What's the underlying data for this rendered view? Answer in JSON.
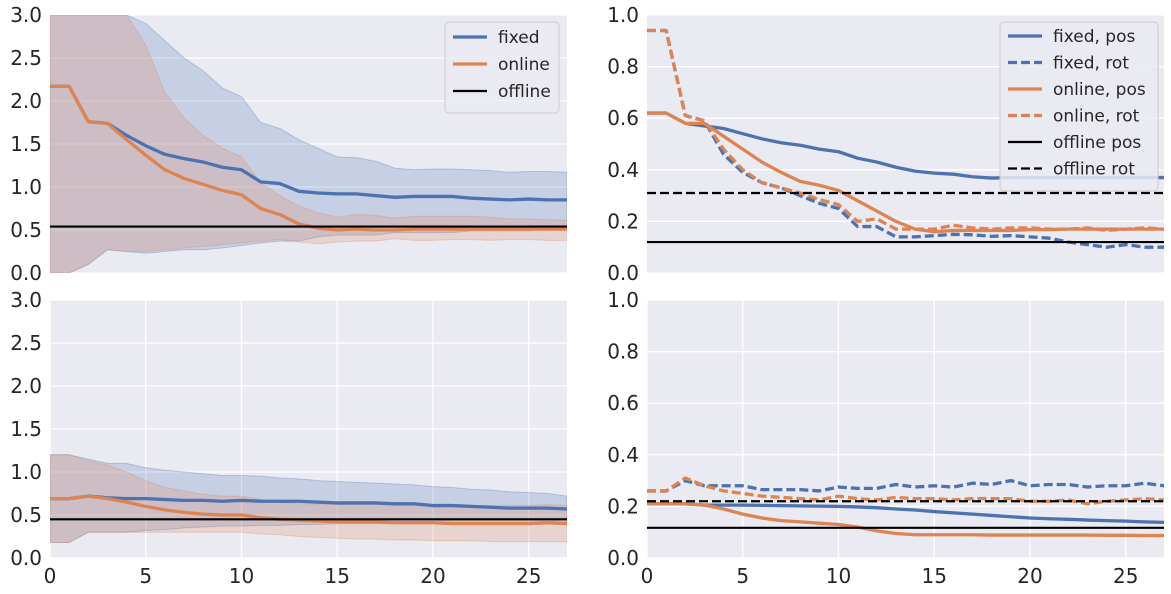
{
  "chart_data": [
    {
      "type": "line",
      "id": "top-left",
      "x": [
        0,
        1,
        2,
        3,
        4,
        5,
        6,
        7,
        8,
        9,
        10,
        11,
        12,
        13,
        14,
        15,
        16,
        17,
        18,
        19,
        20,
        21,
        22,
        23,
        24,
        25,
        26,
        27
      ],
      "xlim": [
        0,
        27
      ],
      "ylim": [
        0,
        3.0
      ],
      "yticks": [
        "0.0",
        "0.5",
        "1.0",
        "1.5",
        "2.0",
        "2.5",
        "3.0"
      ],
      "xticks": [],
      "grid": true,
      "legend": "top-right",
      "series": [
        {
          "name": "fixed",
          "color": "#4c72b0",
          "style": "solid",
          "values": [
            2.17,
            2.17,
            1.76,
            1.74,
            1.6,
            1.48,
            1.38,
            1.33,
            1.29,
            1.23,
            1.2,
            1.06,
            1.04,
            0.95,
            0.93,
            0.92,
            0.92,
            0.9,
            0.88,
            0.89,
            0.89,
            0.89,
            0.87,
            0.86,
            0.85,
            0.86,
            0.85,
            0.85
          ],
          "band_low": [
            0.0,
            0.0,
            0.1,
            0.27,
            0.25,
            0.23,
            0.25,
            0.27,
            0.27,
            0.29,
            0.32,
            0.35,
            0.37,
            0.37,
            0.42,
            0.44,
            0.44,
            0.44,
            0.47,
            0.47,
            0.47,
            0.47,
            0.49,
            0.49,
            0.49,
            0.49,
            0.51,
            0.52
          ],
          "band_high": [
            3.0,
            3.0,
            3.0,
            3.0,
            3.0,
            2.9,
            2.7,
            2.5,
            2.35,
            2.15,
            2.05,
            1.75,
            1.68,
            1.55,
            1.45,
            1.35,
            1.34,
            1.3,
            1.22,
            1.2,
            1.21,
            1.21,
            1.2,
            1.19,
            1.17,
            1.18,
            1.18,
            1.17
          ]
        },
        {
          "name": "online",
          "color": "#dd8452",
          "style": "solid",
          "values": [
            2.17,
            2.17,
            1.76,
            1.74,
            1.55,
            1.37,
            1.2,
            1.1,
            1.03,
            0.96,
            0.91,
            0.75,
            0.68,
            0.57,
            0.52,
            0.5,
            0.51,
            0.5,
            0.5,
            0.51,
            0.51,
            0.51,
            0.51,
            0.51,
            0.51,
            0.51,
            0.51,
            0.51
          ],
          "band_low": [
            0.0,
            0.0,
            0.1,
            0.27,
            0.25,
            0.25,
            0.27,
            0.29,
            0.31,
            0.33,
            0.35,
            0.37,
            0.39,
            0.36,
            0.34,
            0.36,
            0.37,
            0.37,
            0.4,
            0.38,
            0.38,
            0.39,
            0.39,
            0.38,
            0.39,
            0.39,
            0.38,
            0.38
          ],
          "band_high": [
            3.0,
            3.0,
            3.0,
            3.0,
            3.0,
            2.65,
            2.1,
            1.8,
            1.6,
            1.45,
            1.35,
            1.05,
            0.9,
            0.78,
            0.7,
            0.65,
            0.68,
            0.67,
            0.64,
            0.66,
            0.66,
            0.66,
            0.66,
            0.65,
            0.63,
            0.63,
            0.62,
            0.61
          ]
        },
        {
          "name": "offline",
          "color": "#000000",
          "style": "solid",
          "constant": 0.54
        }
      ]
    },
    {
      "type": "line",
      "id": "top-right",
      "x": [
        0,
        1,
        2,
        3,
        4,
        5,
        6,
        7,
        8,
        9,
        10,
        11,
        12,
        13,
        14,
        15,
        16,
        17,
        18,
        19,
        20,
        21,
        22,
        23,
        24,
        25,
        26,
        27
      ],
      "xlim": [
        0,
        27
      ],
      "ylim": [
        0,
        1.0
      ],
      "yticks": [
        "0.0",
        "0.2",
        "0.4",
        "0.6",
        "0.8",
        "1.0"
      ],
      "xticks": [],
      "grid": true,
      "legend": "top-right",
      "series": [
        {
          "name": "fixed, pos",
          "color": "#4c72b0",
          "style": "solid",
          "values": [
            0.62,
            0.62,
            0.58,
            0.57,
            0.56,
            0.54,
            0.52,
            0.505,
            0.495,
            0.48,
            0.47,
            0.445,
            0.43,
            0.41,
            0.395,
            0.387,
            0.383,
            0.373,
            0.368,
            0.37,
            0.37,
            0.37,
            0.37,
            0.37,
            0.37,
            0.37,
            0.37,
            0.37
          ]
        },
        {
          "name": "fixed, rot",
          "color": "#4c72b0",
          "style": "dashed",
          "values": [
            0.94,
            0.94,
            0.61,
            0.59,
            0.46,
            0.39,
            0.35,
            0.33,
            0.3,
            0.27,
            0.25,
            0.18,
            0.18,
            0.14,
            0.14,
            0.145,
            0.15,
            0.148,
            0.142,
            0.145,
            0.14,
            0.135,
            0.12,
            0.11,
            0.1,
            0.11,
            0.1,
            0.1
          ]
        },
        {
          "name": "online, pos",
          "color": "#dd8452",
          "style": "solid",
          "values": [
            0.62,
            0.62,
            0.58,
            0.58,
            0.53,
            0.48,
            0.43,
            0.39,
            0.355,
            0.34,
            0.32,
            0.28,
            0.24,
            0.2,
            0.17,
            0.16,
            0.165,
            0.165,
            0.165,
            0.165,
            0.168,
            0.168,
            0.17,
            0.17,
            0.17,
            0.17,
            0.17,
            0.17
          ]
        },
        {
          "name": "online, rot",
          "color": "#dd8452",
          "style": "dashed",
          "values": [
            0.94,
            0.94,
            0.61,
            0.59,
            0.48,
            0.4,
            0.35,
            0.33,
            0.31,
            0.285,
            0.265,
            0.2,
            0.21,
            0.17,
            0.17,
            0.17,
            0.185,
            0.175,
            0.17,
            0.175,
            0.175,
            0.17,
            0.17,
            0.175,
            0.165,
            0.17,
            0.175,
            0.17
          ]
        },
        {
          "name": "offline pos",
          "color": "#000000",
          "style": "solid",
          "constant": 0.12
        },
        {
          "name": "offline rot",
          "color": "#000000",
          "style": "dashed",
          "constant": 0.31
        }
      ]
    },
    {
      "type": "line",
      "id": "bottom-left",
      "x": [
        0,
        1,
        2,
        3,
        4,
        5,
        6,
        7,
        8,
        9,
        10,
        11,
        12,
        13,
        14,
        15,
        16,
        17,
        18,
        19,
        20,
        21,
        22,
        23,
        24,
        25,
        26,
        27
      ],
      "xlim": [
        0,
        27
      ],
      "ylim": [
        0,
        3.0
      ],
      "yticks": [
        "0.0",
        "0.5",
        "1.0",
        "1.5",
        "2.0",
        "2.5",
        "3.0"
      ],
      "xticks": [
        "0",
        "5",
        "10",
        "15",
        "20",
        "25"
      ],
      "grid": true,
      "legend": "none",
      "series": [
        {
          "name": "fixed",
          "color": "#4c72b0",
          "style": "solid",
          "values": [
            0.69,
            0.69,
            0.72,
            0.7,
            0.69,
            0.69,
            0.68,
            0.67,
            0.67,
            0.66,
            0.67,
            0.66,
            0.66,
            0.66,
            0.65,
            0.64,
            0.64,
            0.64,
            0.63,
            0.63,
            0.61,
            0.61,
            0.6,
            0.59,
            0.58,
            0.58,
            0.58,
            0.57
          ],
          "band_low": [
            0.18,
            0.18,
            0.3,
            0.3,
            0.3,
            0.32,
            0.33,
            0.35,
            0.36,
            0.37,
            0.37,
            0.38,
            0.38,
            0.39,
            0.39,
            0.4,
            0.4,
            0.4,
            0.4,
            0.41,
            0.41,
            0.41,
            0.4,
            0.4,
            0.4,
            0.4,
            0.4,
            0.4
          ],
          "band_high": [
            1.2,
            1.2,
            1.15,
            1.1,
            1.1,
            1.05,
            1.02,
            1.0,
            0.98,
            0.96,
            0.96,
            0.95,
            0.93,
            0.92,
            0.9,
            0.89,
            0.88,
            0.87,
            0.86,
            0.85,
            0.83,
            0.82,
            0.8,
            0.79,
            0.77,
            0.76,
            0.75,
            0.72
          ]
        },
        {
          "name": "online",
          "color": "#dd8452",
          "style": "solid",
          "values": [
            0.69,
            0.69,
            0.72,
            0.69,
            0.65,
            0.6,
            0.56,
            0.53,
            0.51,
            0.5,
            0.5,
            0.47,
            0.45,
            0.44,
            0.43,
            0.42,
            0.42,
            0.42,
            0.41,
            0.41,
            0.41,
            0.4,
            0.4,
            0.4,
            0.4,
            0.4,
            0.41,
            0.4
          ],
          "band_low": [
            0.18,
            0.18,
            0.3,
            0.3,
            0.3,
            0.3,
            0.3,
            0.3,
            0.3,
            0.3,
            0.3,
            0.28,
            0.27,
            0.25,
            0.24,
            0.23,
            0.22,
            0.22,
            0.21,
            0.21,
            0.2,
            0.2,
            0.2,
            0.19,
            0.19,
            0.19,
            0.19,
            0.19
          ],
          "band_high": [
            1.2,
            1.2,
            1.13,
            1.08,
            1.0,
            0.9,
            0.82,
            0.78,
            0.74,
            0.72,
            0.72,
            0.68,
            0.65,
            0.63,
            0.63,
            0.62,
            0.62,
            0.62,
            0.62,
            0.62,
            0.61,
            0.61,
            0.61,
            0.61,
            0.61,
            0.61,
            0.62,
            0.61
          ]
        },
        {
          "name": "offline",
          "color": "#000000",
          "style": "solid",
          "constant": 0.45
        }
      ]
    },
    {
      "type": "line",
      "id": "bottom-right",
      "x": [
        0,
        1,
        2,
        3,
        4,
        5,
        6,
        7,
        8,
        9,
        10,
        11,
        12,
        13,
        14,
        15,
        16,
        17,
        18,
        19,
        20,
        21,
        22,
        23,
        24,
        25,
        26,
        27
      ],
      "xlim": [
        0,
        27
      ],
      "ylim": [
        0,
        1.0
      ],
      "yticks": [
        "0.0",
        "0.2",
        "0.4",
        "0.6",
        "0.8",
        "1.0"
      ],
      "xticks": [
        "0",
        "5",
        "10",
        "15",
        "20",
        "25"
      ],
      "grid": true,
      "legend": "none",
      "series": [
        {
          "name": "fixed, pos",
          "color": "#4c72b0",
          "style": "solid",
          "values": [
            0.21,
            0.21,
            0.21,
            0.205,
            0.205,
            0.205,
            0.204,
            0.203,
            0.202,
            0.201,
            0.2,
            0.198,
            0.195,
            0.19,
            0.186,
            0.18,
            0.175,
            0.17,
            0.165,
            0.16,
            0.155,
            0.152,
            0.15,
            0.147,
            0.145,
            0.143,
            0.14,
            0.138
          ]
        },
        {
          "name": "fixed, rot",
          "color": "#4c72b0",
          "style": "dashed",
          "values": [
            0.26,
            0.26,
            0.3,
            0.28,
            0.28,
            0.28,
            0.265,
            0.265,
            0.265,
            0.26,
            0.275,
            0.27,
            0.27,
            0.285,
            0.275,
            0.28,
            0.275,
            0.29,
            0.285,
            0.3,
            0.28,
            0.285,
            0.285,
            0.275,
            0.28,
            0.28,
            0.29,
            0.28
          ]
        },
        {
          "name": "online, pos",
          "color": "#dd8452",
          "style": "solid",
          "values": [
            0.21,
            0.21,
            0.21,
            0.205,
            0.19,
            0.17,
            0.155,
            0.145,
            0.14,
            0.135,
            0.13,
            0.12,
            0.105,
            0.095,
            0.09,
            0.09,
            0.09,
            0.09,
            0.089,
            0.089,
            0.089,
            0.089,
            0.089,
            0.089,
            0.088,
            0.088,
            0.087,
            0.087
          ]
        },
        {
          "name": "online, rot",
          "color": "#dd8452",
          "style": "dashed",
          "values": [
            0.26,
            0.26,
            0.31,
            0.28,
            0.26,
            0.25,
            0.24,
            0.235,
            0.23,
            0.225,
            0.24,
            0.23,
            0.225,
            0.235,
            0.23,
            0.23,
            0.225,
            0.23,
            0.23,
            0.23,
            0.22,
            0.22,
            0.225,
            0.21,
            0.22,
            0.225,
            0.23,
            0.225
          ]
        },
        {
          "name": "offline pos",
          "color": "#000000",
          "style": "solid",
          "constant": 0.117
        },
        {
          "name": "offline rot",
          "color": "#000000",
          "style": "dashed",
          "constant": 0.22
        }
      ]
    }
  ],
  "style": {
    "plot_background": "#eaeaf2",
    "grid_color": "#ffffff",
    "band_alpha": 0.22
  }
}
